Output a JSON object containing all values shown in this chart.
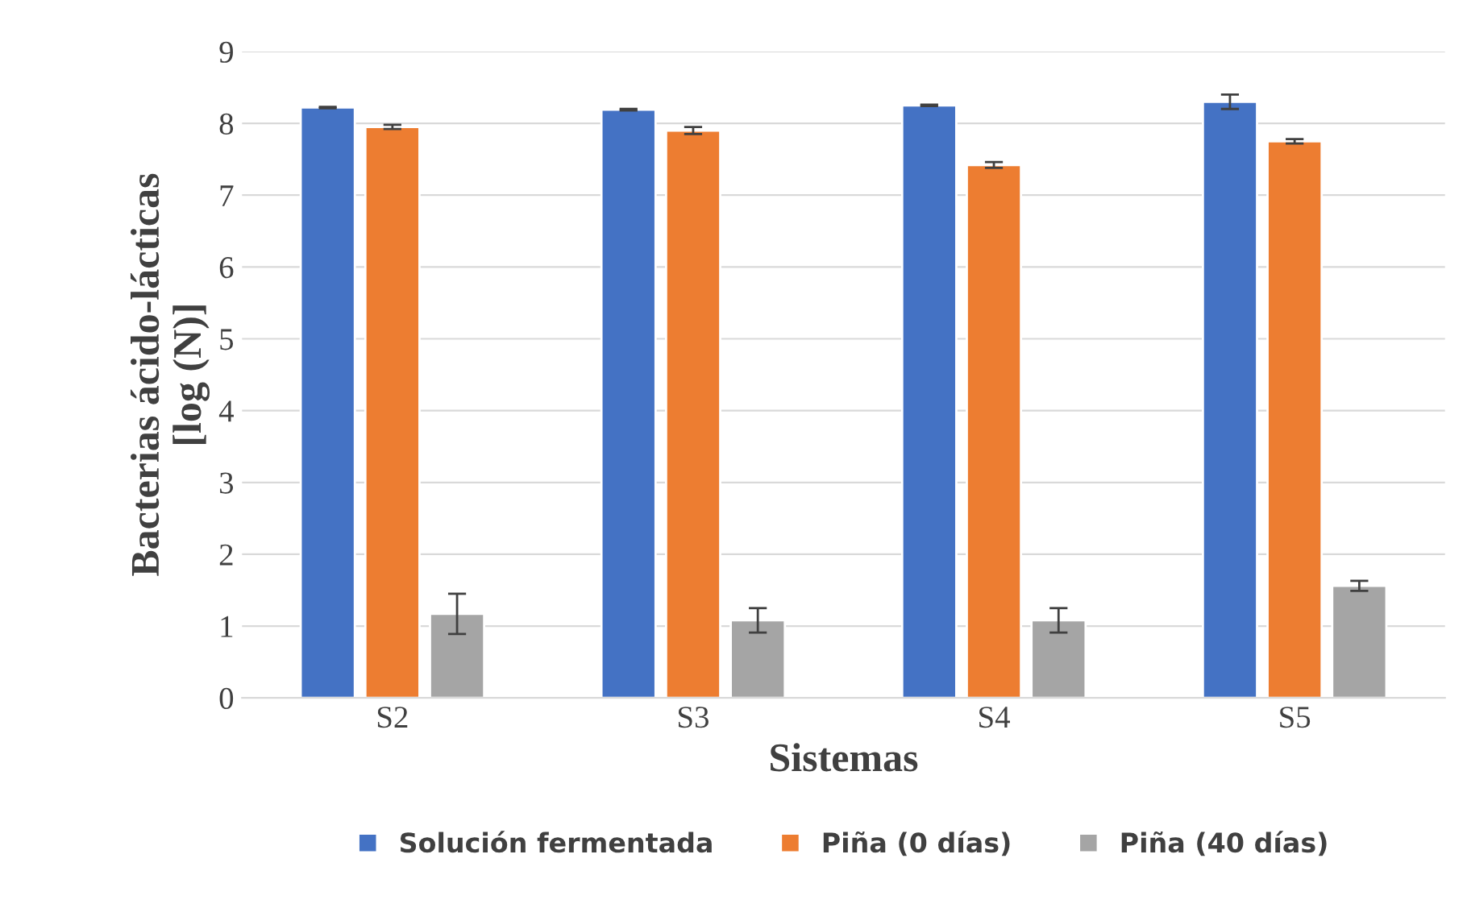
{
  "chart_data": {
    "type": "bar",
    "xlabel": "Sistemas",
    "ylabel": "Bacterias ácido-lácticas\n[log (N)]",
    "categories": [
      "S2",
      "S3",
      "S4",
      "S5"
    ],
    "series": [
      {
        "name": "Solución fermentada",
        "color": "#4472c4",
        "values": [
          8.22,
          8.19,
          8.25,
          8.3
        ],
        "errors": [
          0.01,
          0.01,
          0.01,
          0.1
        ]
      },
      {
        "name": "Piña (0 días)",
        "color": "#ed7d31",
        "values": [
          7.95,
          7.9,
          7.42,
          7.75
        ],
        "errors": [
          0.03,
          0.05,
          0.04,
          0.03
        ]
      },
      {
        "name": "Piña (40 días)",
        "color": "#a5a5a5",
        "values": [
          1.17,
          1.08,
          1.08,
          1.56
        ],
        "errors": [
          0.28,
          0.17,
          0.17,
          0.07
        ]
      }
    ],
    "ylim": [
      0,
      9
    ],
    "yticks": [
      0,
      1,
      2,
      3,
      4,
      5,
      6,
      7,
      8,
      9
    ],
    "grid": "y",
    "legend": "bottom"
  }
}
